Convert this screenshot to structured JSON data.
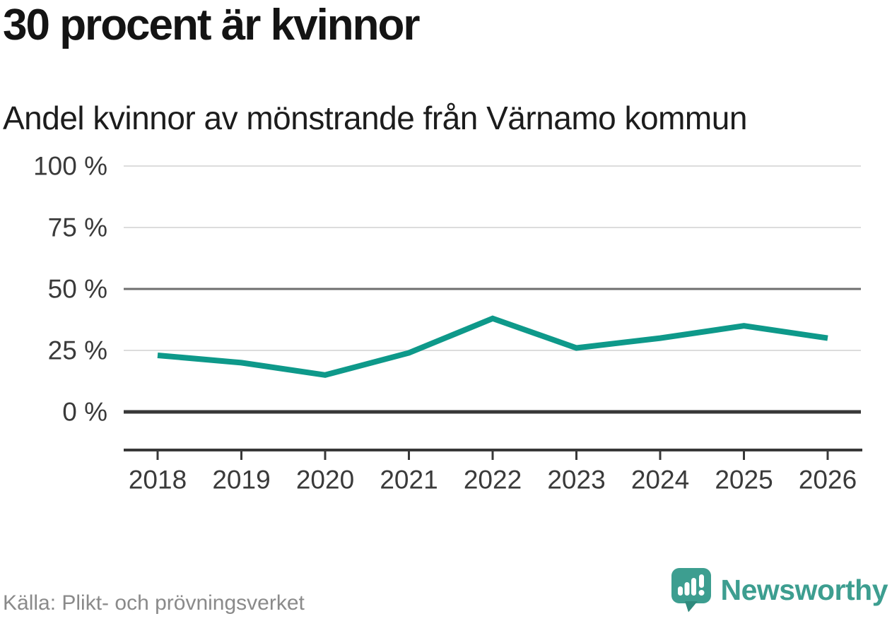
{
  "header": {
    "title": "30 procent är kvinnor",
    "subtitle": "Andel kvinnor av mönstrande från Värnamo kommun"
  },
  "chart_data": {
    "type": "line",
    "title": "30 procent är kvinnor",
    "subtitle": "Andel kvinnor av mönstrande från Värnamo kommun",
    "x": [
      "2018",
      "2019",
      "2020",
      "2021",
      "2022",
      "2023",
      "2024",
      "2025",
      "2026"
    ],
    "series": [
      {
        "name": "andel-kvinnor",
        "values": [
          23,
          20,
          15,
          24,
          38,
          26,
          30,
          35,
          30
        ]
      }
    ],
    "ylim": [
      0,
      100
    ],
    "yticks": [
      {
        "value": 0,
        "label": "0 %",
        "emphasis": "baseline"
      },
      {
        "value": 25,
        "label": "25 %",
        "emphasis": "light"
      },
      {
        "value": 50,
        "label": "50 %",
        "emphasis": "strong"
      },
      {
        "value": 75,
        "label": "75 %",
        "emphasis": "light"
      },
      {
        "value": 100,
        "label": "100 %",
        "emphasis": "light"
      }
    ],
    "xlabel": "",
    "ylabel": "",
    "grid": true,
    "legend": "none",
    "line_color": "#0e998a"
  },
  "footer": {
    "source": "Källa: Plikt- och prövningsverket",
    "brand": "Newsworthy"
  },
  "colors": {
    "accent_teal": "#0e998a",
    "axis_text": "#3a3a3a",
    "grid_light": "#dcdcdc",
    "grid_strong": "#6f6f6f",
    "grid_baseline": "#383838",
    "source_gray": "#8a8a8a",
    "brand_teal": "#3d9e90",
    "brand_teal_dark": "#2f8a7d"
  }
}
